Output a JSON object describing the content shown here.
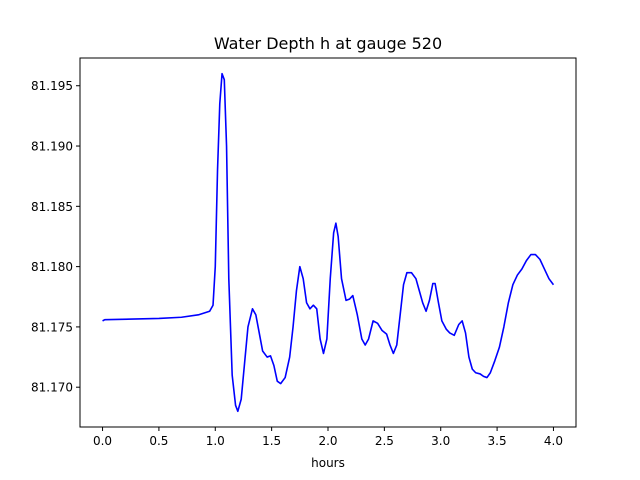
{
  "chart_data": {
    "type": "line",
    "title": "Water Depth h at gauge 520",
    "xlabel": "hours",
    "ylabel": "",
    "xlim": [
      -0.2,
      4.2
    ],
    "ylim": [
      81.1667,
      81.1973
    ],
    "grid": false,
    "x_ticks": [
      0.0,
      0.5,
      1.0,
      1.5,
      2.0,
      2.5,
      3.0,
      3.5,
      4.0
    ],
    "x_tick_labels": [
      "0.0",
      "0.5",
      "1.0",
      "1.5",
      "2.0",
      "2.5",
      "3.0",
      "3.5",
      "4.0"
    ],
    "y_ticks": [
      81.17,
      81.175,
      81.18,
      81.185,
      81.19,
      81.195
    ],
    "y_tick_labels": [
      "81.170",
      "81.175",
      "81.180",
      "81.185",
      "81.190",
      "81.195"
    ],
    "series": [
      {
        "color": "#0000ff",
        "points": [
          [
            0.0,
            81.1755
          ],
          [
            0.02,
            81.1756
          ],
          [
            0.5,
            81.1757
          ],
          [
            0.7,
            81.1758
          ],
          [
            0.85,
            81.176
          ],
          [
            0.95,
            81.1763
          ],
          [
            0.98,
            81.1768
          ],
          [
            1.0,
            81.18
          ],
          [
            1.02,
            81.188
          ],
          [
            1.04,
            81.1935
          ],
          [
            1.06,
            81.196
          ],
          [
            1.08,
            81.1955
          ],
          [
            1.1,
            81.19
          ],
          [
            1.12,
            81.179
          ],
          [
            1.15,
            81.171
          ],
          [
            1.18,
            81.1685
          ],
          [
            1.2,
            81.168
          ],
          [
            1.23,
            81.169
          ],
          [
            1.26,
            81.172
          ],
          [
            1.29,
            81.175
          ],
          [
            1.33,
            81.1765
          ],
          [
            1.36,
            81.176
          ],
          [
            1.39,
            81.1745
          ],
          [
            1.42,
            81.173
          ],
          [
            1.46,
            81.1725
          ],
          [
            1.49,
            81.1726
          ],
          [
            1.52,
            81.1718
          ],
          [
            1.55,
            81.1705
          ],
          [
            1.58,
            81.1703
          ],
          [
            1.62,
            81.1708
          ],
          [
            1.66,
            81.1725
          ],
          [
            1.69,
            81.175
          ],
          [
            1.72,
            81.178
          ],
          [
            1.75,
            81.18
          ],
          [
            1.78,
            81.179
          ],
          [
            1.81,
            81.177
          ],
          [
            1.84,
            81.1765
          ],
          [
            1.87,
            81.1768
          ],
          [
            1.9,
            81.1765
          ],
          [
            1.93,
            81.174
          ],
          [
            1.96,
            81.1728
          ],
          [
            1.99,
            81.174
          ],
          [
            2.02,
            81.179
          ],
          [
            2.05,
            81.1828
          ],
          [
            2.07,
            81.1836
          ],
          [
            2.09,
            81.1825
          ],
          [
            2.12,
            81.179
          ],
          [
            2.16,
            81.1772
          ],
          [
            2.19,
            81.1773
          ],
          [
            2.22,
            81.1776
          ],
          [
            2.26,
            81.176
          ],
          [
            2.3,
            81.174
          ],
          [
            2.33,
            81.1735
          ],
          [
            2.36,
            81.174
          ],
          [
            2.4,
            81.1755
          ],
          [
            2.44,
            81.1753
          ],
          [
            2.48,
            81.1747
          ],
          [
            2.52,
            81.1744
          ],
          [
            2.55,
            81.1735
          ],
          [
            2.58,
            81.1728
          ],
          [
            2.61,
            81.1735
          ],
          [
            2.64,
            81.176
          ],
          [
            2.67,
            81.1785
          ],
          [
            2.7,
            81.1795
          ],
          [
            2.74,
            81.1795
          ],
          [
            2.78,
            81.179
          ],
          [
            2.81,
            81.178
          ],
          [
            2.84,
            81.177
          ],
          [
            2.87,
            81.1763
          ],
          [
            2.9,
            81.1772
          ],
          [
            2.93,
            81.1786
          ],
          [
            2.95,
            81.1786
          ],
          [
            2.98,
            81.177
          ],
          [
            3.01,
            81.1755
          ],
          [
            3.05,
            81.1748
          ],
          [
            3.08,
            81.1745
          ],
          [
            3.12,
            81.1743
          ],
          [
            3.16,
            81.1752
          ],
          [
            3.19,
            81.1755
          ],
          [
            3.22,
            81.1745
          ],
          [
            3.25,
            81.1725
          ],
          [
            3.28,
            81.1715
          ],
          [
            3.31,
            81.1712
          ],
          [
            3.35,
            81.1711
          ],
          [
            3.38,
            81.1709
          ],
          [
            3.41,
            81.1708
          ],
          [
            3.44,
            81.1712
          ],
          [
            3.48,
            81.1722
          ],
          [
            3.52,
            81.1733
          ],
          [
            3.56,
            81.175
          ],
          [
            3.6,
            81.177
          ],
          [
            3.64,
            81.1785
          ],
          [
            3.68,
            81.1793
          ],
          [
            3.72,
            81.1798
          ],
          [
            3.76,
            81.1805
          ],
          [
            3.8,
            81.181
          ],
          [
            3.84,
            81.181
          ],
          [
            3.88,
            81.1806
          ],
          [
            3.92,
            81.1798
          ],
          [
            3.96,
            81.179
          ],
          [
            4.0,
            81.1785
          ]
        ]
      }
    ]
  }
}
